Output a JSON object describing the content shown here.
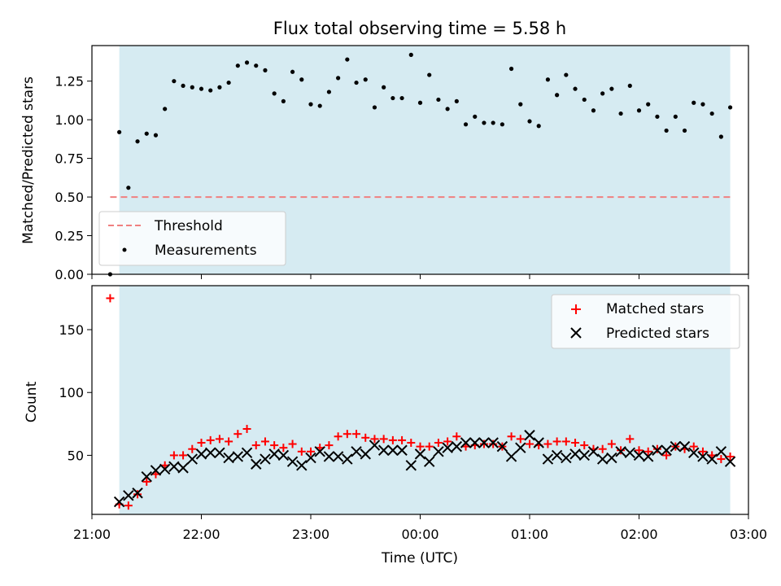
{
  "chart_data": [
    {
      "type": "scatter",
      "title": "Flux total observing time = 5.58 h",
      "xlabel": "",
      "ylabel": "Matched/Predicted stars",
      "xlim": [
        "21:00",
        "03:00"
      ],
      "ylim": [
        0,
        1.48
      ],
      "yticks": [
        0.0,
        0.25,
        0.5,
        0.75,
        1.0,
        1.25
      ],
      "ytick_labels": [
        "0.00",
        "0.25",
        "0.50",
        "0.75",
        "1.00",
        "1.25"
      ],
      "shaded_span": {
        "start": "21:15",
        "end": "02:50",
        "color": "#add8e6"
      },
      "threshold": {
        "name": "Threshold",
        "y": 0.5,
        "x_start": "21:10",
        "x_end": "02:50",
        "color": "#f08080",
        "style": "dashed"
      },
      "series": [
        {
          "name": "Measurements",
          "marker": "dot",
          "color": "#000000",
          "x": [
            "21:10",
            "21:15",
            "21:20",
            "21:25",
            "21:30",
            "21:35",
            "21:40",
            "21:45",
            "21:50",
            "21:55",
            "22:00",
            "22:05",
            "22:10",
            "22:15",
            "22:20",
            "22:25",
            "22:30",
            "22:35",
            "22:40",
            "22:45",
            "22:50",
            "22:55",
            "23:00",
            "23:05",
            "23:10",
            "23:15",
            "23:20",
            "23:25",
            "23:30",
            "23:35",
            "23:40",
            "23:45",
            "23:50",
            "23:55",
            "00:00",
            "00:05",
            "00:10",
            "00:15",
            "00:20",
            "00:25",
            "00:30",
            "00:35",
            "00:40",
            "00:45",
            "00:50",
            "00:55",
            "01:00",
            "01:05",
            "01:10",
            "01:15",
            "01:20",
            "01:25",
            "01:30",
            "01:35",
            "01:40",
            "01:45",
            "01:50",
            "01:55",
            "02:00",
            "02:05",
            "02:10",
            "02:15",
            "02:20",
            "02:25",
            "02:30",
            "02:35",
            "02:40",
            "02:45",
            "02:50"
          ],
          "y": [
            0.0,
            0.92,
            0.56,
            0.86,
            0.91,
            0.9,
            1.07,
            1.25,
            1.22,
            1.21,
            1.2,
            1.19,
            1.21,
            1.24,
            1.35,
            1.37,
            1.35,
            1.32,
            1.17,
            1.12,
            1.31,
            1.26,
            1.1,
            1.09,
            1.18,
            1.27,
            1.39,
            1.24,
            1.26,
            1.08,
            1.21,
            1.14,
            1.14,
            1.42,
            1.11,
            1.29,
            1.13,
            1.07,
            1.12,
            0.97,
            1.02,
            0.98,
            0.98,
            0.97,
            1.33,
            1.1,
            0.99,
            0.96,
            1.26,
            1.16,
            1.29,
            1.2,
            1.13,
            1.06,
            1.17,
            1.2,
            1.04,
            1.22,
            1.06,
            1.1,
            1.02,
            0.93,
            1.02,
            0.93,
            1.11,
            1.1,
            1.04,
            0.89,
            1.08
          ]
        }
      ],
      "legend": {
        "placement": "lower-left",
        "entries": [
          "Threshold",
          "Measurements"
        ]
      }
    },
    {
      "type": "scatter",
      "title": "",
      "xlabel": "Time (UTC)",
      "ylabel": "Count",
      "xlim": [
        "21:00",
        "03:00"
      ],
      "xticks": [
        "21:00",
        "22:00",
        "23:00",
        "00:00",
        "01:00",
        "02:00",
        "03:00"
      ],
      "ylim": [
        3,
        185
      ],
      "yticks": [
        50,
        100,
        150
      ],
      "ytick_labels": [
        "50",
        "100",
        "150"
      ],
      "shaded_span": {
        "start": "21:15",
        "end": "02:50",
        "color": "#add8e6"
      },
      "series": [
        {
          "name": "Matched stars",
          "marker": "plus",
          "color": "#ff0000",
          "x": [
            "21:10",
            "21:15",
            "21:20",
            "21:25",
            "21:30",
            "21:35",
            "21:40",
            "21:45",
            "21:50",
            "21:55",
            "22:00",
            "22:05",
            "22:10",
            "22:15",
            "22:20",
            "22:25",
            "22:30",
            "22:35",
            "22:40",
            "22:45",
            "22:50",
            "22:55",
            "23:00",
            "23:05",
            "23:10",
            "23:15",
            "23:20",
            "23:25",
            "23:30",
            "23:35",
            "23:40",
            "23:45",
            "23:50",
            "23:55",
            "00:00",
            "00:05",
            "00:10",
            "00:15",
            "00:20",
            "00:25",
            "00:30",
            "00:35",
            "00:40",
            "00:45",
            "00:50",
            "00:55",
            "01:00",
            "01:05",
            "01:10",
            "01:15",
            "01:20",
            "01:25",
            "01:30",
            "01:35",
            "01:40",
            "01:45",
            "01:50",
            "01:55",
            "02:00",
            "02:05",
            "02:10",
            "02:15",
            "02:20",
            "02:25",
            "02:30",
            "02:35",
            "02:40",
            "02:45",
            "02:50"
          ],
          "y": [
            175,
            11,
            10,
            19,
            29,
            35,
            42,
            50,
            50,
            55,
            60,
            62,
            63,
            61,
            67,
            71,
            58,
            61,
            58,
            56,
            59,
            53,
            53,
            56,
            58,
            65,
            67,
            67,
            64,
            63,
            63,
            62,
            62,
            60,
            57,
            57,
            60,
            61,
            65,
            57,
            58,
            59,
            59,
            57,
            65,
            63,
            59,
            58,
            59,
            61,
            61,
            60,
            58,
            55,
            55,
            59,
            54,
            63,
            54,
            53,
            55,
            50,
            57,
            55,
            57,
            53,
            50,
            47,
            49
          ]
        },
        {
          "name": "Predicted stars",
          "marker": "x",
          "color": "#000000",
          "x": [
            "21:15",
            "21:20",
            "21:25",
            "21:30",
            "21:35",
            "21:40",
            "21:45",
            "21:50",
            "21:55",
            "22:00",
            "22:05",
            "22:10",
            "22:15",
            "22:20",
            "22:25",
            "22:30",
            "22:35",
            "22:40",
            "22:45",
            "22:50",
            "22:55",
            "23:00",
            "23:05",
            "23:10",
            "23:15",
            "23:20",
            "23:25",
            "23:30",
            "23:35",
            "23:40",
            "23:45",
            "23:50",
            "23:55",
            "00:00",
            "00:05",
            "00:10",
            "00:15",
            "00:20",
            "00:25",
            "00:30",
            "00:35",
            "00:40",
            "00:45",
            "00:50",
            "00:55",
            "01:00",
            "01:05",
            "01:10",
            "01:15",
            "01:20",
            "01:25",
            "01:30",
            "01:35",
            "01:40",
            "01:45",
            "01:50",
            "01:55",
            "02:00",
            "02:05",
            "02:10",
            "02:15",
            "02:20",
            "02:25",
            "02:30",
            "02:35",
            "02:40",
            "02:45",
            "02:50"
          ],
          "y": [
            13,
            18,
            20,
            33,
            38,
            39,
            41,
            40,
            47,
            51,
            52,
            52,
            48,
            49,
            52,
            43,
            47,
            51,
            50,
            45,
            42,
            48,
            53,
            49,
            49,
            47,
            53,
            51,
            58,
            54,
            54,
            54,
            42,
            51,
            45,
            53,
            56,
            57,
            60,
            60,
            60,
            60,
            57,
            49,
            56,
            66,
            60,
            47,
            50,
            48,
            51,
            50,
            53,
            47,
            48,
            53,
            52,
            50,
            49,
            54,
            54,
            57,
            57,
            52,
            49,
            47,
            53,
            45
          ]
        }
      ],
      "legend": {
        "placement": "upper-right",
        "entries": [
          "Matched stars",
          "Predicted stars"
        ]
      }
    }
  ]
}
